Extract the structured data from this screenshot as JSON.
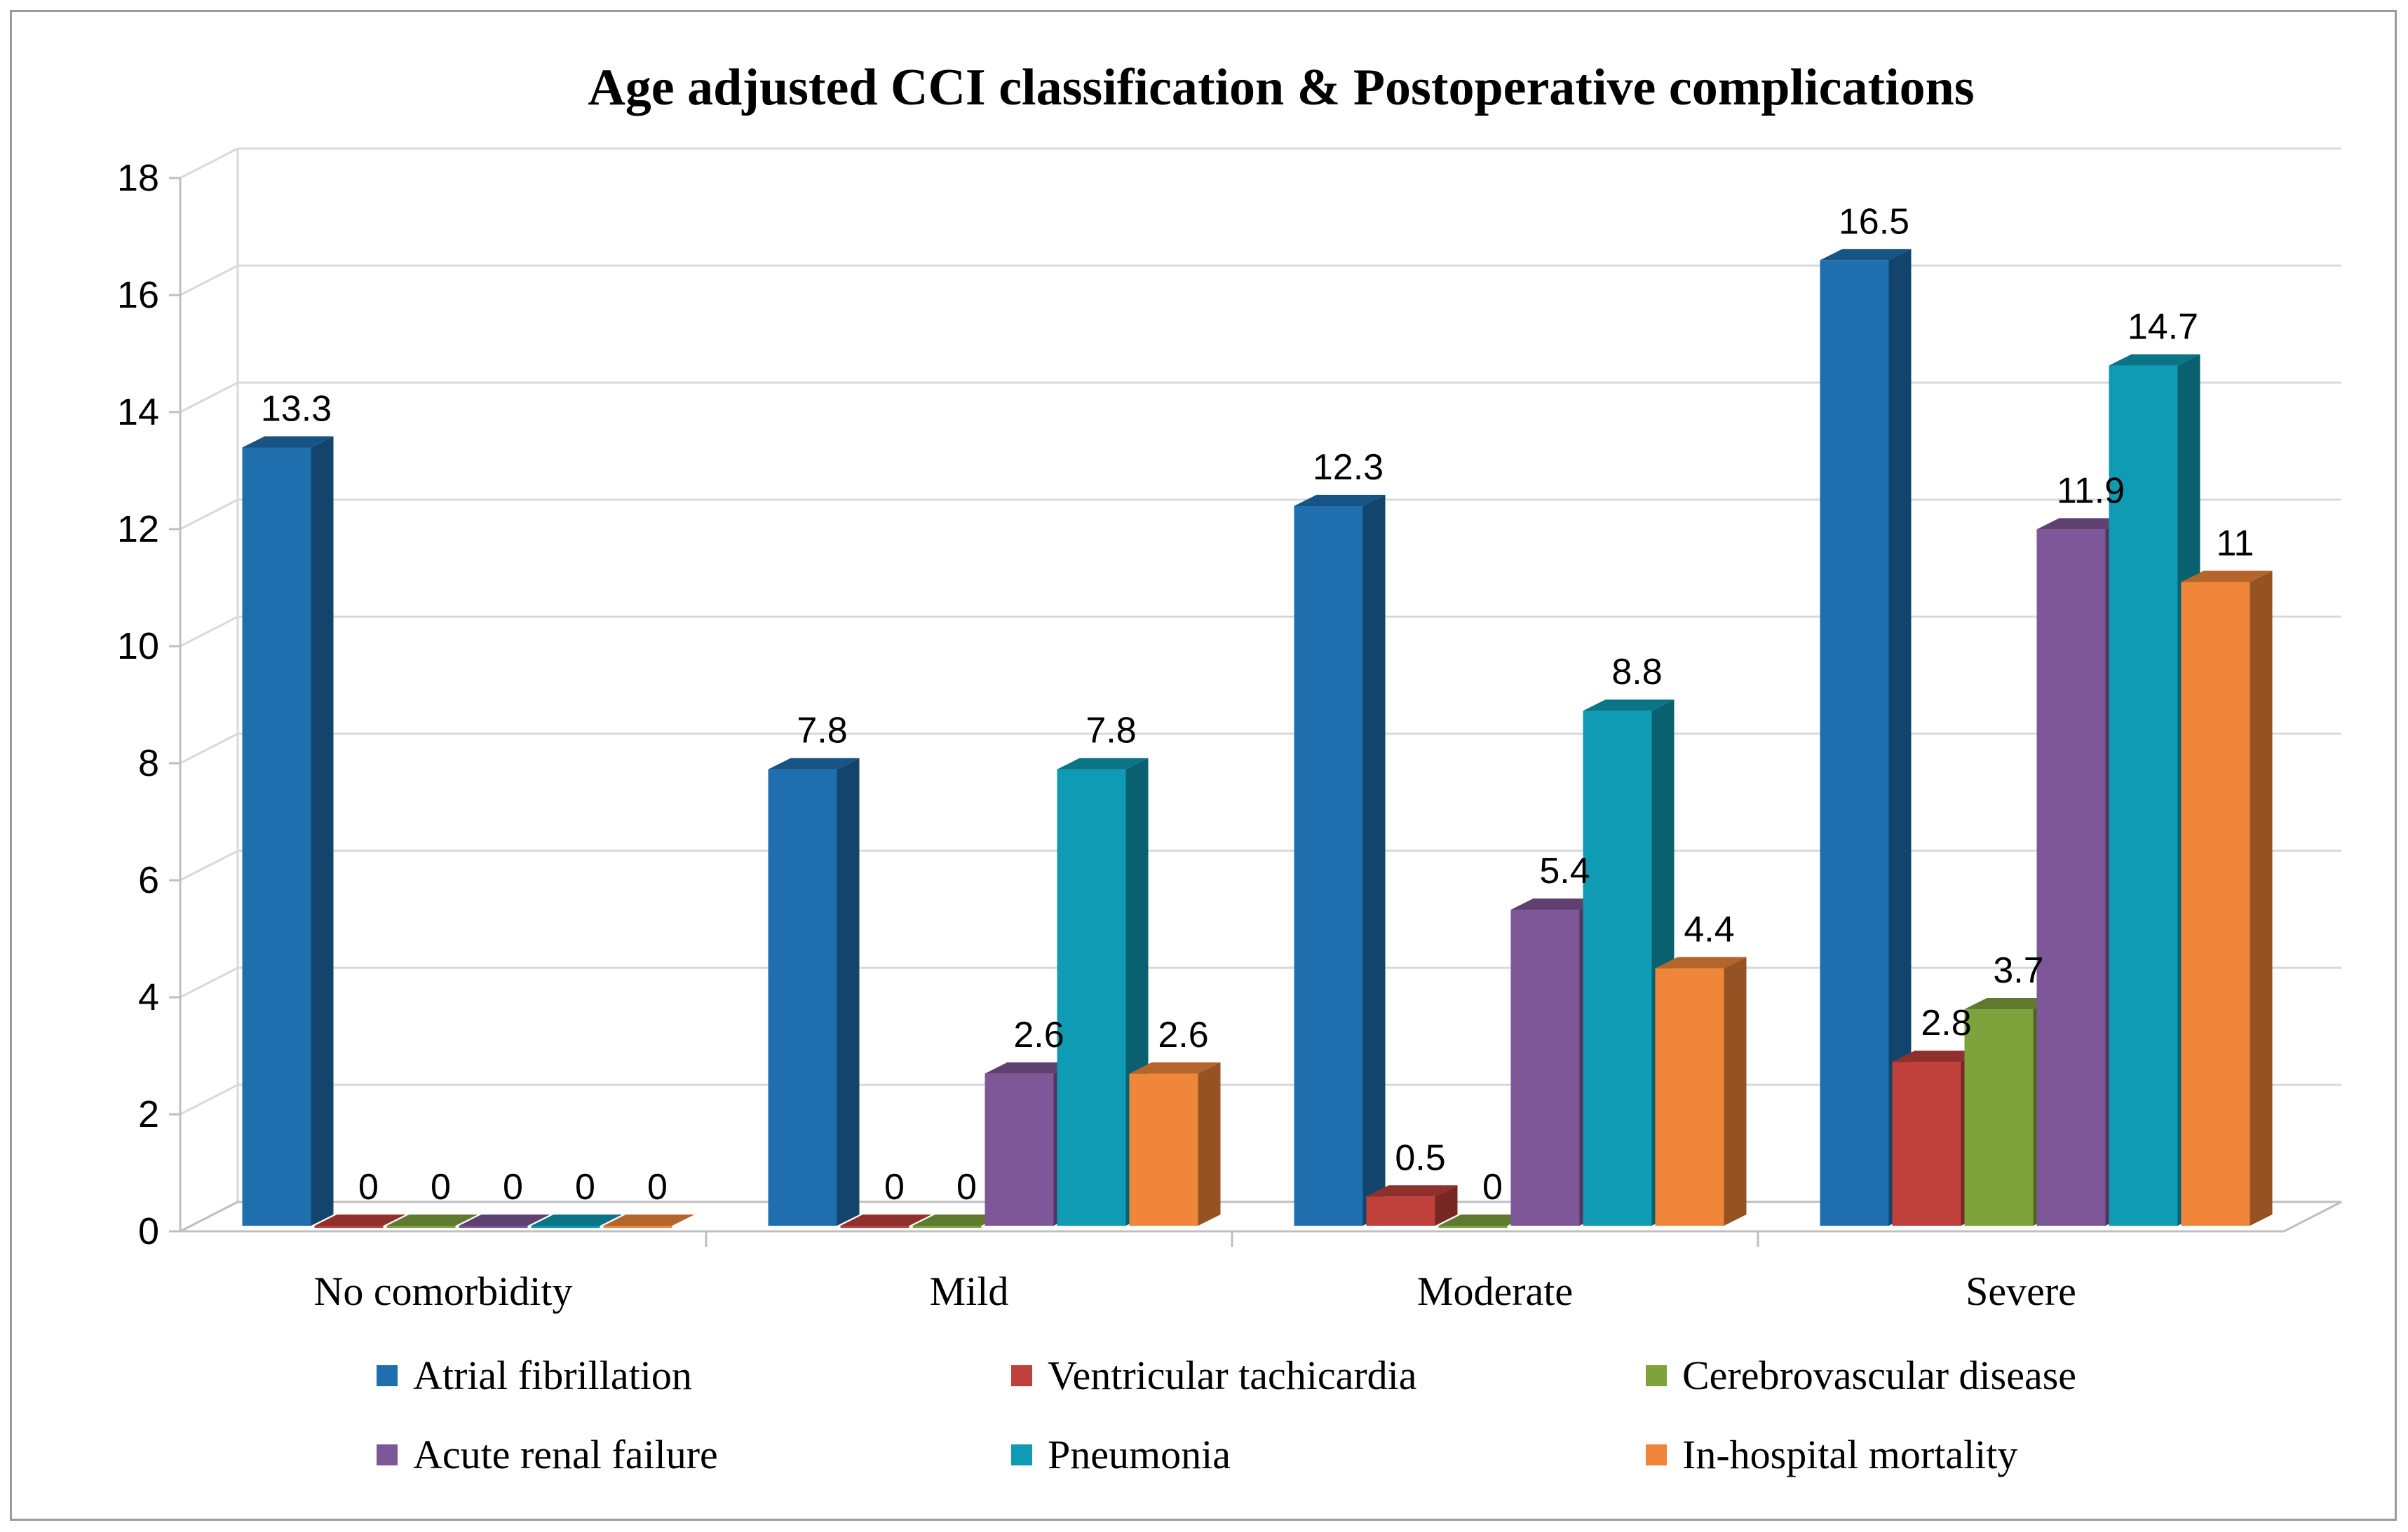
{
  "chart_data": {
    "type": "bar",
    "title": "Age adjusted CCI classification & Postoperative complications",
    "xlabel": "",
    "ylabel": "",
    "ylim": [
      0,
      18
    ],
    "yticks": [
      0,
      2,
      4,
      6,
      8,
      10,
      12,
      14,
      16,
      18
    ],
    "grid": true,
    "legend_position": "bottom",
    "categories": [
      "No comorbidity",
      "Mild",
      "Moderate",
      "Severe"
    ],
    "series": [
      {
        "name": "Atrial fibrillation",
        "color": "#1f6fae",
        "values": [
          13.3,
          7.8,
          12.3,
          16.5
        ],
        "labels": [
          "13.3",
          "7.8",
          "12.3",
          "16.5"
        ]
      },
      {
        "name": "Ventricular tachicardia",
        "color": "#c0403b",
        "values": [
          0,
          0,
          0.5,
          2.8
        ],
        "labels": [
          "0",
          "0",
          "0.5",
          "2.8"
        ]
      },
      {
        "name": "Cerebrovascular disease",
        "color": "#7ea33d",
        "values": [
          0,
          0,
          0,
          3.7
        ],
        "labels": [
          "0",
          "0",
          "0",
          "3.7"
        ]
      },
      {
        "name": "Acute renal failure",
        "color": "#7d5797",
        "values": [
          0,
          2.6,
          5.4,
          11.9
        ],
        "labels": [
          "0",
          "2.6",
          "5.4",
          "11.9"
        ]
      },
      {
        "name": "Pneumonia",
        "color": "#0f9bb3",
        "values": [
          0,
          7.8,
          8.8,
          14.7
        ],
        "labels": [
          "0",
          "7.8",
          "8.8",
          "14.7"
        ]
      },
      {
        "name": "In-hospital mortality",
        "color": "#f0863a",
        "values": [
          0,
          2.6,
          4.4,
          11
        ],
        "labels": [
          "0",
          "2.6",
          "4.4",
          "11"
        ]
      }
    ]
  }
}
